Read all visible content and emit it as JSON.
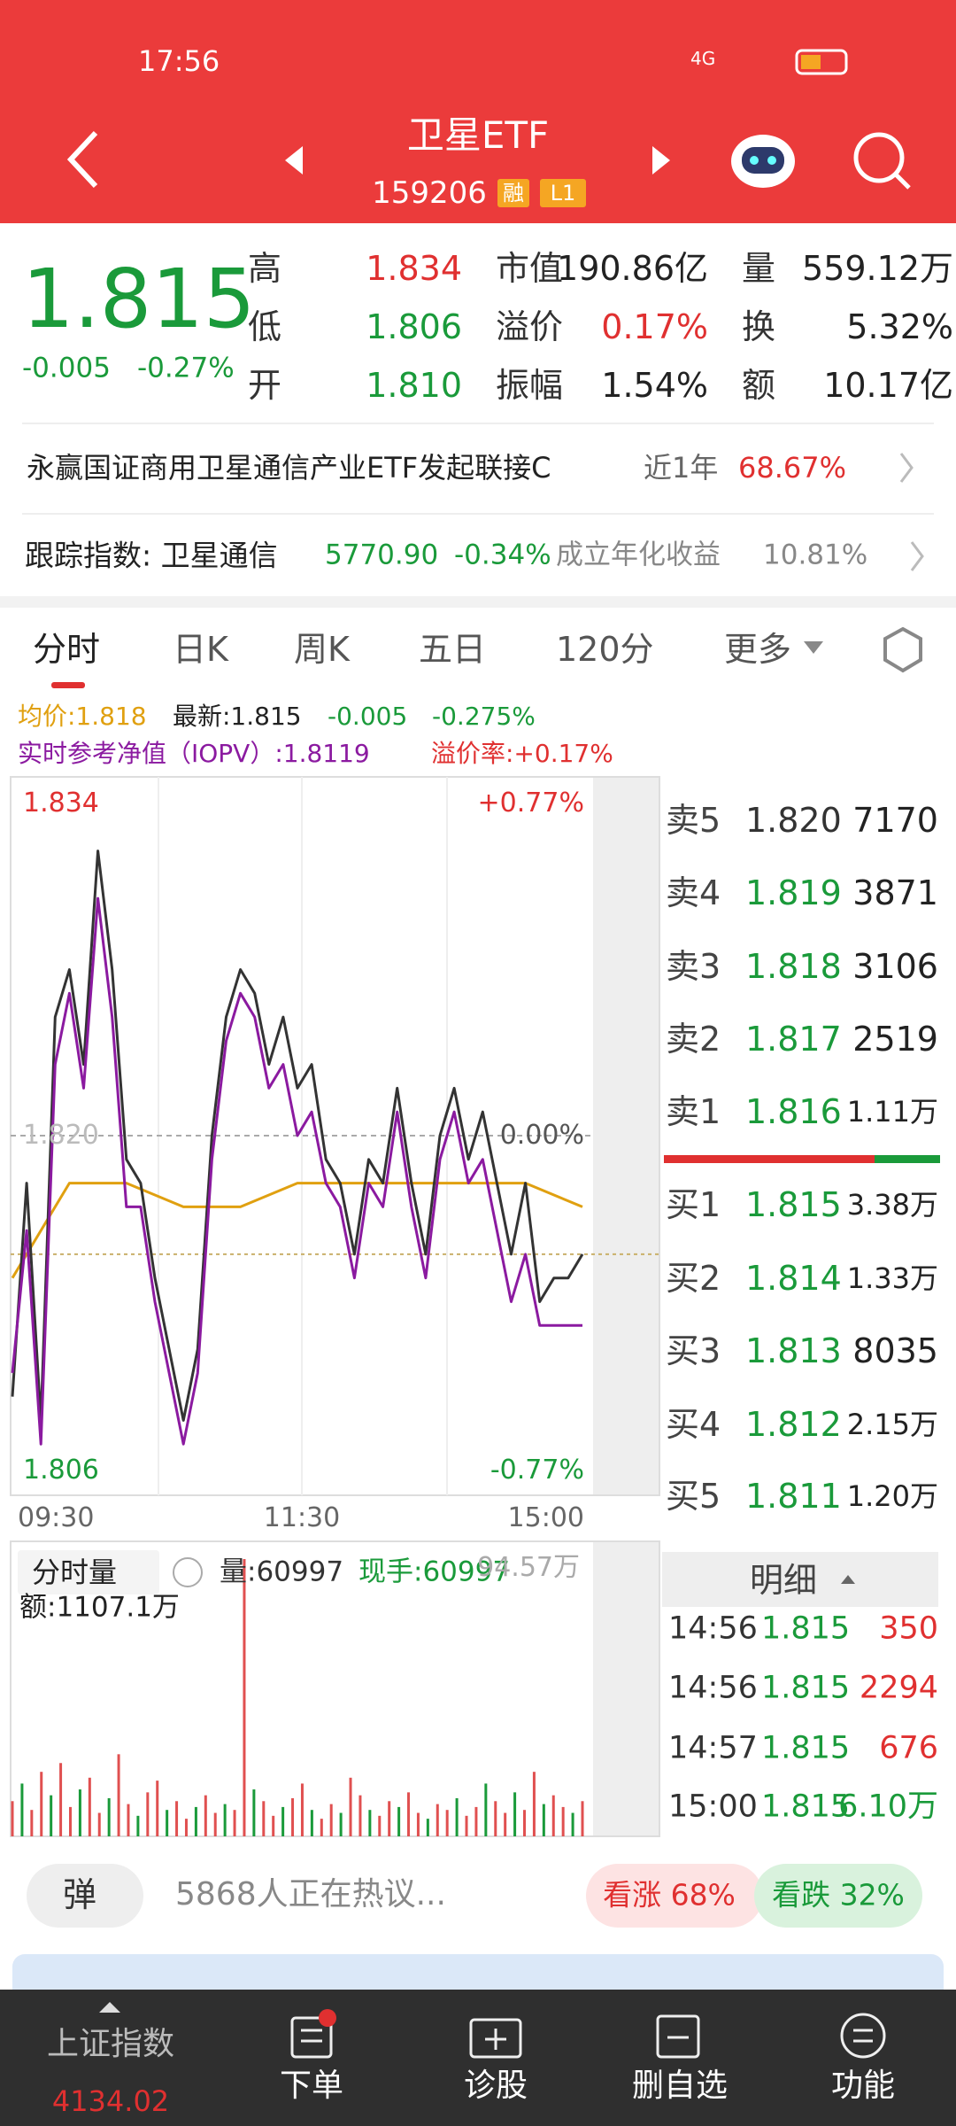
{
  "status": {
    "time": "17:56",
    "network": "4G"
  },
  "header": {
    "title": "卫星ETF",
    "code": "159206",
    "badges": [
      "融",
      "L1"
    ]
  },
  "quote": {
    "price": "1.815",
    "change": "-0.005",
    "change_pct": "-0.27%",
    "stats": [
      [
        {
          "label": "高",
          "value": "1.834",
          "color": "#e03030"
        },
        {
          "label": "市值",
          "value": "190.86亿",
          "color": "#222222"
        },
        {
          "label": "量",
          "value": "559.12万",
          "color": "#222222"
        }
      ],
      [
        {
          "label": "低",
          "value": "1.806",
          "color": "#1a9a3a"
        },
        {
          "label": "溢价",
          "value": "0.17%",
          "color": "#e03030"
        },
        {
          "label": "换",
          "value": "5.32%",
          "color": "#222222"
        }
      ],
      [
        {
          "label": "开",
          "value": "1.810",
          "color": "#1a9a3a"
        },
        {
          "label": "振幅",
          "value": "1.54%",
          "color": "#222222"
        },
        {
          "label": "额",
          "value": "10.17亿",
          "color": "#222222"
        }
      ]
    ]
  },
  "fund": {
    "name": "永赢国证商用卫星通信产业ETF发起联接C",
    "period": "近1年",
    "return": "68.67%"
  },
  "index": {
    "label": "跟踪指数: 卫星通信",
    "value": "5770.90",
    "change": "-0.34%",
    "extra_label": "成立年化收益",
    "extra": "10.81%"
  },
  "tabs": [
    "分时",
    "日K",
    "周K",
    "五日",
    "120分",
    "更多"
  ],
  "legend": {
    "avg": "均价:1.818",
    "latest": "最新:1.815",
    "change": "-0.005",
    "pct": "-0.275%",
    "iopv": "实时参考净值（IOPV）:1.8119",
    "premium": "溢价率:+0.17%"
  },
  "intraday": {
    "ylim": [
      1.806,
      1.834
    ],
    "yticks": [
      1.806,
      {
        "value": 1.82,
        "label": "1.820"
      },
      1.834
    ],
    "pct_ticks": [
      {
        "value": 1.834,
        "label": "+0.77%"
      },
      {
        "value": 1.82,
        "label": "0.00%"
      },
      {
        "value": 1.806,
        "label": "-0.77%"
      }
    ],
    "x_labels": [
      "09:30",
      "11:30",
      "15:00"
    ],
    "price": {
      "color": "#333333",
      "values": [
        1.809,
        1.818,
        1.808,
        1.825,
        1.827,
        1.823,
        1.832,
        1.827,
        1.819,
        1.818,
        1.814,
        1.811,
        1.808,
        1.811,
        1.82,
        1.825,
        1.827,
        1.826,
        1.823,
        1.825,
        1.822,
        1.823,
        1.819,
        1.818,
        1.815,
        1.819,
        1.818,
        1.822,
        1.818,
        1.815,
        1.82,
        1.822,
        1.819,
        1.821,
        1.818,
        1.815,
        1.818,
        1.813,
        1.814,
        1.814,
        1.815
      ]
    },
    "iopv": {
      "color": "#8b1aa0",
      "values": [
        1.81,
        1.816,
        1.807,
        1.823,
        1.826,
        1.822,
        1.83,
        1.825,
        1.817,
        1.817,
        1.813,
        1.81,
        1.807,
        1.81,
        1.819,
        1.824,
        1.826,
        1.825,
        1.822,
        1.823,
        1.82,
        1.821,
        1.818,
        1.817,
        1.814,
        1.818,
        1.817,
        1.821,
        1.817,
        1.814,
        1.819,
        1.821,
        1.818,
        1.819,
        1.816,
        1.813,
        1.815,
        1.812,
        1.812,
        1.812,
        1.812
      ]
    },
    "avg": {
      "color": "#e0a010",
      "values": [
        1.814,
        1.818,
        1.818,
        1.817,
        1.817,
        1.818,
        1.818,
        1.818,
        1.818,
        1.818,
        1.817
      ]
    }
  },
  "volume": {
    "label": "分时量",
    "vol": "量:60997",
    "hand": "现手:60997",
    "amount": "额:1107.1万",
    "ylim": [
      0,
      94.57
    ],
    "yticks": [
      {
        "value": 94.57,
        "label": "94.57万"
      }
    ],
    "values": [
      12,
      18,
      9,
      22,
      14,
      25,
      10,
      16,
      20,
      8,
      13,
      28,
      11,
      7,
      15,
      19,
      9,
      12,
      6,
      10,
      14,
      8,
      11,
      9,
      94.57,
      16,
      12,
      7,
      10,
      13,
      18,
      9,
      6,
      11,
      8,
      20,
      14,
      9,
      7,
      12,
      10,
      15,
      8,
      6,
      11,
      9,
      13,
      7,
      10,
      18,
      12,
      8,
      15,
      9,
      22,
      11,
      14,
      10,
      8,
      12
    ]
  },
  "order_book": {
    "sells": [
      {
        "label": "卖5",
        "price": "1.820",
        "volume": "7170",
        "color": "#333333"
      },
      {
        "label": "卖4",
        "price": "1.819",
        "volume": "3871",
        "color": "#1a9a3a"
      },
      {
        "label": "卖3",
        "price": "1.818",
        "volume": "3106",
        "color": "#1a9a3a"
      },
      {
        "label": "卖2",
        "price": "1.817",
        "volume": "2519",
        "color": "#1a9a3a"
      },
      {
        "label": "卖1",
        "price": "1.816",
        "volume": "1.11万",
        "color": "#1a9a3a"
      }
    ],
    "buys": [
      {
        "label": "买1",
        "price": "1.815",
        "volume": "3.38万",
        "color": "#1a9a3a"
      },
      {
        "label": "买2",
        "price": "1.814",
        "volume": "1.33万",
        "color": "#1a9a3a"
      },
      {
        "label": "买3",
        "price": "1.813",
        "volume": "8035",
        "color": "#1a9a3a"
      },
      {
        "label": "买4",
        "price": "1.812",
        "volume": "2.15万",
        "color": "#1a9a3a"
      },
      {
        "label": "买5",
        "price": "1.811",
        "volume": "1.20万",
        "color": "#1a9a3a"
      }
    ]
  },
  "detail": {
    "title": "明细",
    "trades": [
      {
        "time": "14:56",
        "price": "1.815",
        "volume": "350",
        "color": "#e03030"
      },
      {
        "time": "14:56",
        "price": "1.815",
        "volume": "2294",
        "color": "#e03030"
      },
      {
        "time": "14:57",
        "price": "1.815",
        "volume": "676",
        "color": "#e03030"
      },
      {
        "time": "15:00",
        "price": "1.815",
        "volume": "6.10万",
        "color": "#1a9a3a"
      }
    ]
  },
  "discussion": {
    "button": "弹",
    "text": "5868人正在热议...",
    "bull": "看涨 68%",
    "bear": "看跌 32%"
  },
  "nav": {
    "index_name": "上证指数",
    "index_value": "4134.02",
    "items": [
      "下单",
      "诊股",
      "删自选",
      "功能"
    ]
  }
}
